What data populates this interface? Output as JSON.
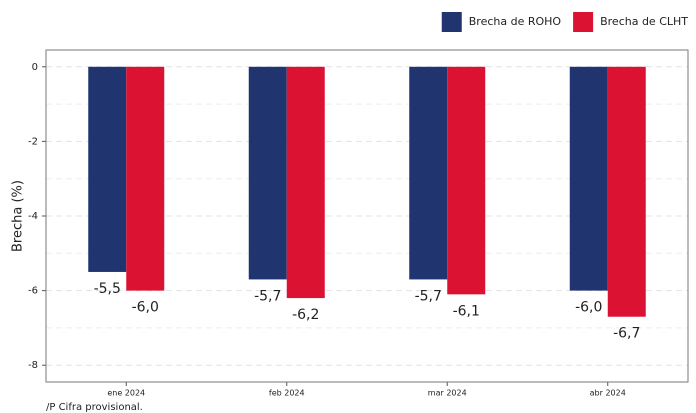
{
  "chart_data": {
    "type": "bar",
    "y_label": "Brecha (%)",
    "footnote": "/P Cifra provisional.",
    "categories": [
      "ene 2024",
      "feb 2024",
      "mar 2024",
      "abr 2024"
    ],
    "series": [
      {
        "name": "Brecha de ROHO",
        "color": "#203570",
        "values": [
          -5.5,
          -5.7,
          -5.7,
          -6.0
        ],
        "value_labels": [
          "-5,5",
          "-5,7",
          "-5,7",
          "-6,0"
        ]
      },
      {
        "name": "Brecha de CLHT",
        "color": "#dc1233",
        "values": [
          -6.0,
          -6.2,
          -6.1,
          -6.7
        ],
        "value_labels": [
          "-6,0",
          "-6,2",
          "-6,1",
          "-6,7"
        ]
      }
    ],
    "ylim": [
      -8.45,
      0.45
    ],
    "yticks": [
      0,
      -2,
      -4,
      -6,
      -8
    ],
    "grid": true,
    "legend": "top-right"
  }
}
